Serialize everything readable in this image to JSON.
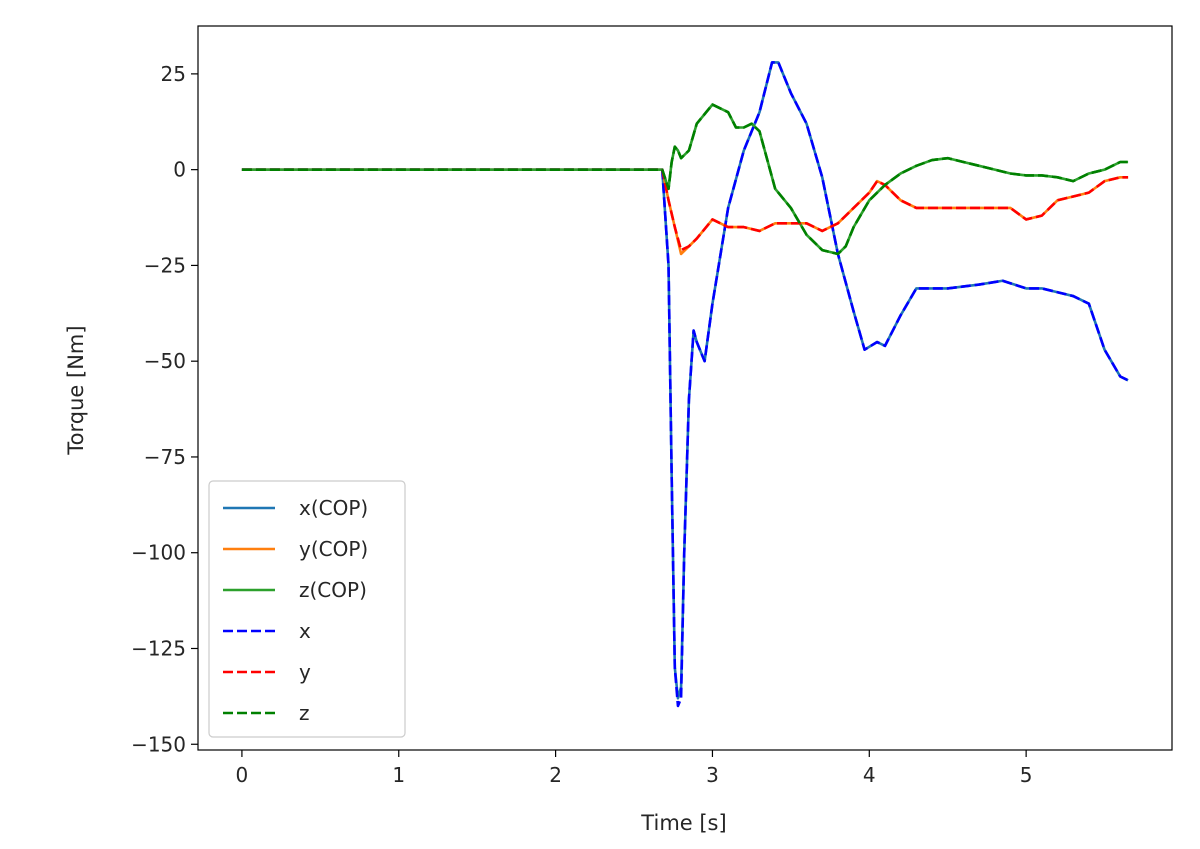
{
  "chart_data": {
    "type": "line",
    "xlabel": "Time [s]",
    "ylabel": "Torque [Nm]",
    "xlim": [
      -0.28,
      5.93
    ],
    "ylim": [
      -151.5,
      37.5
    ],
    "xticks": [
      0,
      1,
      2,
      3,
      4,
      5
    ],
    "yticks": [
      25,
      0,
      -25,
      -50,
      -75,
      -100,
      -125,
      -150
    ],
    "xtick_labels": [
      "0",
      "1",
      "2",
      "3",
      "4",
      "5"
    ],
    "ytick_labels": [
      "25",
      "0",
      "−25",
      "−50",
      "−75",
      "−100",
      "−125",
      "−150"
    ],
    "grid": false,
    "legend": {
      "placement": "lower-left",
      "entries": [
        "x(COP)",
        "y(COP)",
        "z(COP)",
        "x",
        "y",
        "z"
      ]
    },
    "colors": {
      "x(COP)": "#1f77b4",
      "y(COP)": "#ff7f0e",
      "z(COP)": "#2ca02c",
      "x": "#0000ff",
      "y": "#ff0000",
      "z": "#008000"
    },
    "series": [
      {
        "name": "x(COP)",
        "style": "solid",
        "x": [
          0,
          0.5,
          1.0,
          1.5,
          2.0,
          2.5,
          2.68,
          2.72,
          2.74,
          2.76,
          2.78,
          2.8,
          2.82,
          2.85,
          2.88,
          2.9,
          2.95,
          3.0,
          3.1,
          3.2,
          3.3,
          3.38,
          3.42,
          3.5,
          3.6,
          3.7,
          3.8,
          3.9,
          3.97,
          4.05,
          4.1,
          4.2,
          4.3,
          4.5,
          4.7,
          4.85,
          5.0,
          5.1,
          5.2,
          5.3,
          5.4,
          5.5,
          5.6,
          5.65
        ],
        "y": [
          0,
          0,
          0,
          0,
          0,
          0,
          0,
          -25,
          -80,
          -130,
          -138,
          -135,
          -100,
          -60,
          -42,
          -45,
          -50,
          -35,
          -10,
          5,
          15,
          28,
          28,
          20,
          12,
          -2,
          -22,
          -37,
          -47,
          -45,
          -46,
          -38,
          -31,
          -31,
          -30,
          -29,
          -31,
          -31,
          -32,
          -33,
          -35,
          -47,
          -54,
          -55
        ]
      },
      {
        "name": "y(COP)",
        "style": "solid",
        "x": [
          0,
          0.5,
          1.0,
          1.5,
          2.0,
          2.5,
          2.68,
          2.72,
          2.76,
          2.8,
          2.85,
          2.9,
          3.0,
          3.1,
          3.2,
          3.3,
          3.4,
          3.5,
          3.6,
          3.7,
          3.8,
          3.9,
          4.0,
          4.05,
          4.1,
          4.2,
          4.3,
          4.5,
          4.7,
          4.9,
          5.0,
          5.1,
          5.2,
          5.3,
          5.4,
          5.5,
          5.6,
          5.65
        ],
        "y": [
          0,
          0,
          0,
          0,
          0,
          0,
          0,
          -8,
          -15,
          -22,
          -20,
          -18,
          -13,
          -15,
          -15,
          -16,
          -14,
          -14,
          -14,
          -16,
          -14,
          -10,
          -6,
          -3,
          -4,
          -8,
          -10,
          -10,
          -10,
          -10,
          -13,
          -12,
          -8,
          -7,
          -6,
          -3,
          -2,
          -2
        ]
      },
      {
        "name": "z(COP)",
        "style": "solid",
        "x": [
          0,
          0.5,
          1.0,
          1.5,
          2.0,
          2.5,
          2.68,
          2.72,
          2.74,
          2.76,
          2.78,
          2.8,
          2.85,
          2.9,
          3.0,
          3.1,
          3.15,
          3.2,
          3.25,
          3.3,
          3.4,
          3.5,
          3.6,
          3.7,
          3.8,
          3.85,
          3.9,
          4.0,
          4.1,
          4.2,
          4.3,
          4.4,
          4.5,
          4.6,
          4.7,
          4.8,
          4.9,
          5.0,
          5.1,
          5.2,
          5.3,
          5.4,
          5.5,
          5.6,
          5.65
        ],
        "y": [
          0,
          0,
          0,
          0,
          0,
          0,
          0,
          -5,
          2,
          6,
          5,
          3,
          5,
          12,
          17,
          15,
          11,
          11,
          12,
          10,
          -5,
          -10,
          -17,
          -21,
          -22,
          -20,
          -15,
          -8,
          -4,
          -1,
          1,
          2.5,
          3,
          2,
          1,
          0,
          -1,
          -1.5,
          -1.5,
          -2,
          -3,
          -1,
          0,
          2,
          2
        ]
      },
      {
        "name": "x",
        "style": "dashed",
        "x": [
          0,
          0.5,
          1.0,
          1.5,
          2.0,
          2.5,
          2.68,
          2.72,
          2.74,
          2.76,
          2.78,
          2.8,
          2.82,
          2.85,
          2.88,
          2.9,
          2.95,
          3.0,
          3.1,
          3.2,
          3.3,
          3.38,
          3.42,
          3.5,
          3.6,
          3.7,
          3.8,
          3.9,
          3.97,
          4.05,
          4.1,
          4.2,
          4.3,
          4.5,
          4.7,
          4.85,
          5.0,
          5.1,
          5.2,
          5.3,
          5.4,
          5.5,
          5.6,
          5.65
        ],
        "y": [
          0,
          0,
          0,
          0,
          0,
          0,
          0,
          -25,
          -80,
          -130,
          -140,
          -138,
          -100,
          -60,
          -42,
          -45,
          -50,
          -35,
          -10,
          5,
          15,
          28,
          28,
          20,
          12,
          -2,
          -22,
          -37,
          -47,
          -45,
          -46,
          -38,
          -31,
          -31,
          -30,
          -29,
          -31,
          -31,
          -32,
          -33,
          -35,
          -47,
          -54,
          -55
        ]
      },
      {
        "name": "y",
        "style": "dashed",
        "x": [
          0,
          0.5,
          1.0,
          1.5,
          2.0,
          2.5,
          2.68,
          2.72,
          2.76,
          2.8,
          2.85,
          2.9,
          3.0,
          3.1,
          3.2,
          3.3,
          3.4,
          3.5,
          3.6,
          3.7,
          3.8,
          3.9,
          4.0,
          4.05,
          4.1,
          4.2,
          4.3,
          4.5,
          4.7,
          4.9,
          5.0,
          5.1,
          5.2,
          5.3,
          5.4,
          5.5,
          5.6,
          5.65
        ],
        "y": [
          0,
          0,
          0,
          0,
          0,
          0,
          0,
          -8,
          -15,
          -21,
          -20,
          -18,
          -13,
          -15,
          -15,
          -16,
          -14,
          -14,
          -14,
          -16,
          -14,
          -10,
          -6,
          -3,
          -4,
          -8,
          -10,
          -10,
          -10,
          -10,
          -13,
          -12,
          -8,
          -7,
          -6,
          -3,
          -2,
          -2
        ]
      },
      {
        "name": "z",
        "style": "dashed",
        "x": [
          0,
          0.5,
          1.0,
          1.5,
          2.0,
          2.5,
          2.68,
          2.72,
          2.74,
          2.76,
          2.78,
          2.8,
          2.85,
          2.9,
          3.0,
          3.1,
          3.15,
          3.2,
          3.25,
          3.3,
          3.4,
          3.5,
          3.6,
          3.7,
          3.8,
          3.85,
          3.9,
          4.0,
          4.1,
          4.2,
          4.3,
          4.4,
          4.5,
          4.6,
          4.7,
          4.8,
          4.9,
          5.0,
          5.1,
          5.2,
          5.3,
          5.4,
          5.5,
          5.6,
          5.65
        ],
        "y": [
          0,
          0,
          0,
          0,
          0,
          0,
          0,
          -5,
          2,
          6,
          5,
          3,
          5,
          12,
          17,
          15,
          11,
          11,
          12,
          10,
          -5,
          -10,
          -17,
          -21,
          -22,
          -20,
          -15,
          -8,
          -4,
          -1,
          1,
          2.5,
          3,
          2,
          1,
          0,
          -1,
          -1.5,
          -1.5,
          -2,
          -3,
          -1,
          0,
          2,
          2
        ]
      }
    ]
  }
}
